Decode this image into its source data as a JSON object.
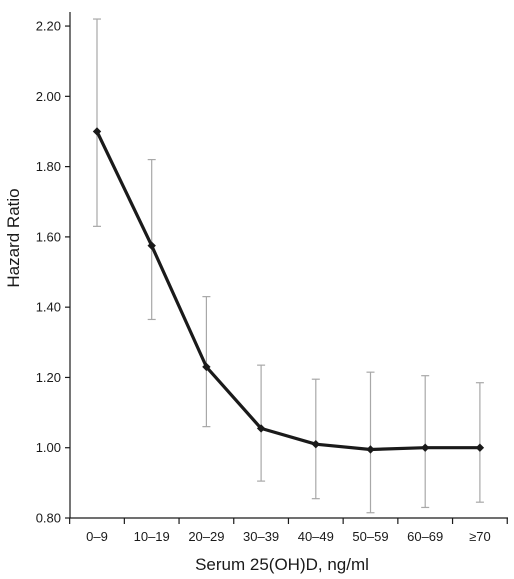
{
  "chart_data": {
    "type": "line",
    "title": "",
    "xlabel": "Serum 25(OH)D, ng/ml",
    "ylabel": "Hazard Ratio",
    "categories": [
      "0–9",
      "10–19",
      "20–29",
      "30–39",
      "40–49",
      "50–59",
      "60–69",
      "≥70"
    ],
    "ylim": [
      0.8,
      2.24
    ],
    "yticks": [
      0.8,
      1.0,
      1.2,
      1.4,
      1.6,
      1.8,
      2.0,
      2.2
    ],
    "ytick_labels": [
      "0.80",
      "1.00",
      "1.20",
      "1.40",
      "1.60",
      "1.80",
      "2.00",
      "2.20"
    ],
    "grid": false,
    "series": [
      {
        "values": [
          1.9,
          1.575,
          1.23,
          1.055,
          1.01,
          0.995,
          1.0,
          1.0
        ],
        "lower": [
          1.63,
          1.365,
          1.06,
          0.905,
          0.855,
          0.815,
          0.83,
          0.845
        ],
        "upper": [
          2.22,
          1.82,
          1.43,
          1.235,
          1.195,
          1.215,
          1.205,
          1.185
        ],
        "color": "#1a1a1a"
      }
    ],
    "errorbar_color": "#a8a8a8"
  }
}
